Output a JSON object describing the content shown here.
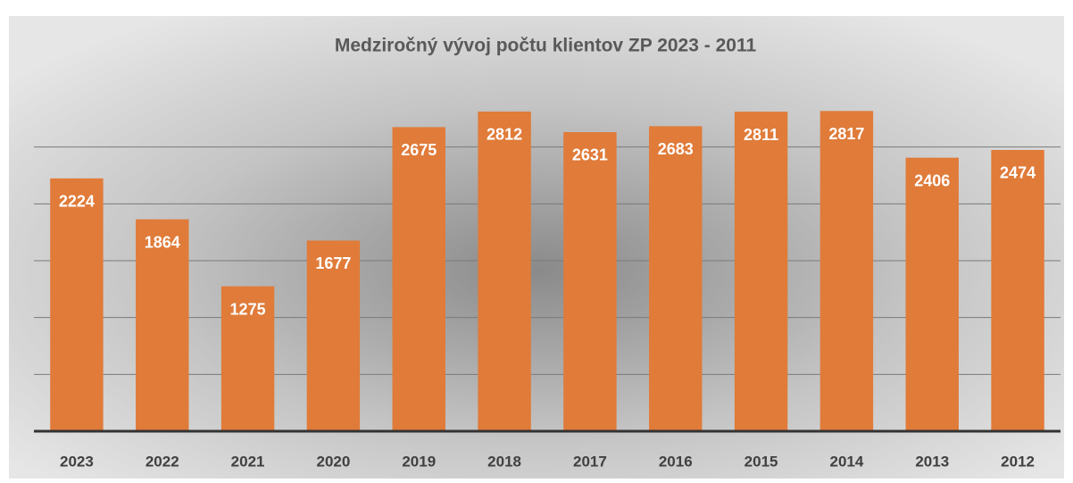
{
  "chart_data": {
    "type": "bar",
    "title": "Medziročný vývoj počtu klientov  ZP 2023 - 2011",
    "categories": [
      "2023",
      "2022",
      "2021",
      "2020",
      "2019",
      "2018",
      "2017",
      "2016",
      "2015",
      "2014",
      "2013",
      "2012"
    ],
    "values": [
      2224,
      1864,
      1275,
      1677,
      2675,
      2812,
      2631,
      2683,
      2811,
      2817,
      2406,
      2474
    ],
    "color": "#e07b39",
    "ylim": [
      0,
      3000
    ],
    "yticks": [
      500,
      1000,
      1500,
      2000,
      2500
    ],
    "grid": true
  }
}
